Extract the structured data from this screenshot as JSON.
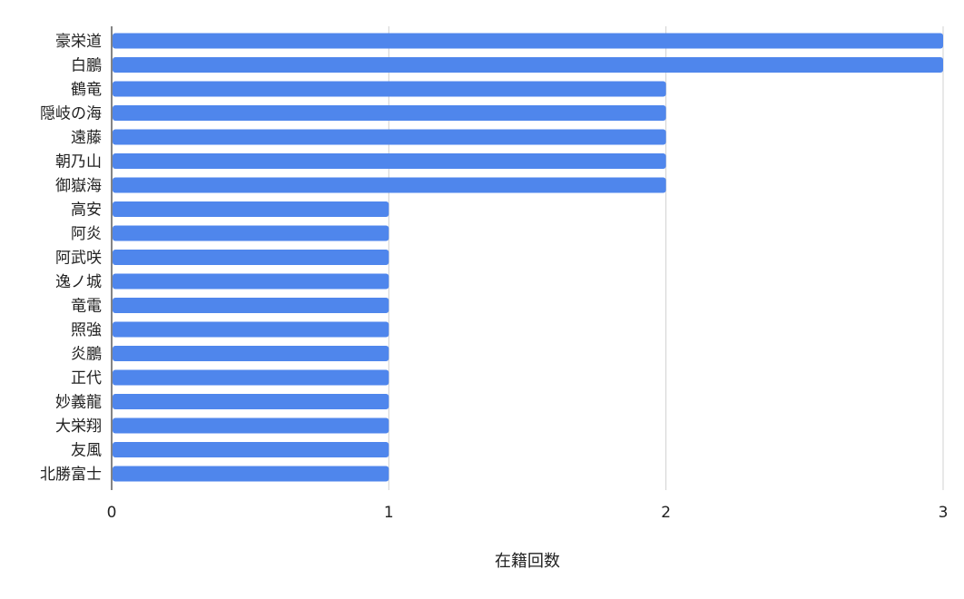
{
  "chart_data": {
    "type": "bar",
    "orientation": "horizontal",
    "categories": [
      "豪栄道",
      "白鵬",
      "鶴竜",
      "隠岐の海",
      "遠藤",
      "朝乃山",
      "御嶽海",
      "高安",
      "阿炎",
      "阿武咲",
      "逸ノ城",
      "竜電",
      "照強",
      "炎鵬",
      "正代",
      "妙義龍",
      "大栄翔",
      "友風",
      "北勝富士"
    ],
    "values": [
      3,
      3,
      2,
      2,
      2,
      2,
      2,
      1,
      1,
      1,
      1,
      1,
      1,
      1,
      1,
      1,
      1,
      1,
      1
    ],
    "xlabel": "在籍回数",
    "ylabel": "",
    "xlim": [
      0,
      3
    ],
    "xticks": [
      "0",
      "1",
      "2",
      "3"
    ],
    "grid": true,
    "bar_color": "#4f86ec",
    "legend": "none"
  }
}
